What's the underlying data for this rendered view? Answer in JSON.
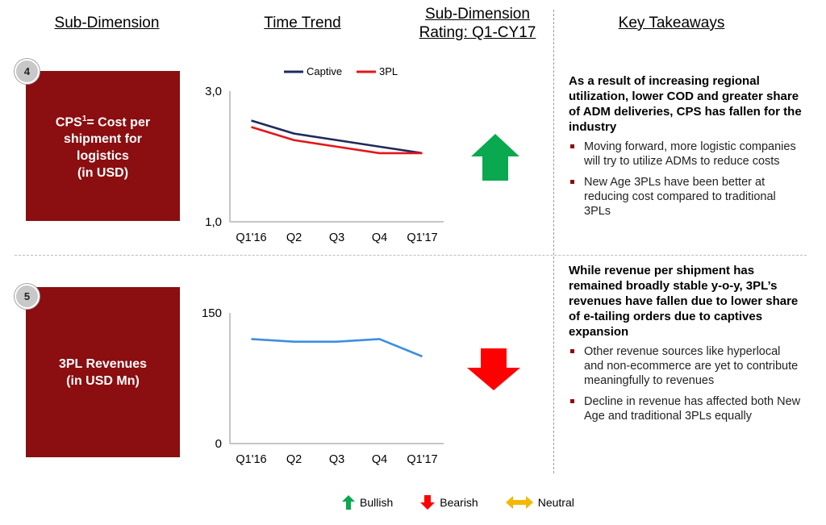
{
  "headers": {
    "sub_dimension": "Sub-Dimension",
    "time_trend": "Time Trend",
    "rating_line1": "Sub-Dimension",
    "rating_line2": "Rating: Q1-CY17",
    "key_takeaways": "Key Takeaways"
  },
  "rows": [
    {
      "number": "4",
      "dimension_main": "CPS",
      "dimension_sup": "1",
      "dimension_rest": "= Cost per\nshipment for\nlogistics\n(in USD)",
      "rating": "bullish",
      "takeaway_lead": "As a result of increasing regional utilization, lower COD and greater share of ADM deliveries, CPS has fallen for the industry",
      "bullets": [
        "Moving forward, more logistic companies will try to utilize ADMs to reduce costs",
        "New Age 3PLs have been better at reducing cost compared to traditional 3PLs"
      ]
    },
    {
      "number": "5",
      "dimension_text": "3PL Revenues\n(in USD Mn)",
      "rating": "bearish",
      "takeaway_lead": "While revenue per shipment has remained broadly stable y-o-y, 3PL’s revenues have fallen due to lower share of e-tailing orders due to captives expansion",
      "bullets": [
        "Other revenue sources like hyperlocal and non-ecommerce are yet to contribute meaningfully to revenues",
        "Decline in revenue has affected both New Age and traditional 3PLs equally"
      ]
    }
  ],
  "chart_data": [
    {
      "type": "line",
      "categories": [
        "Q1'16",
        "Q2",
        "Q3",
        "Q4",
        "Q1'17"
      ],
      "ylim": [
        1.0,
        3.0
      ],
      "yticks": [
        "1,0",
        "3,0"
      ],
      "legend_position": "top",
      "series": [
        {
          "name": "Captive",
          "color": "#1f2a5a",
          "values": [
            2.55,
            2.35,
            2.25,
            2.15,
            2.05
          ]
        },
        {
          "name": "3PL",
          "color": "#e3161b",
          "values": [
            2.45,
            2.25,
            2.15,
            2.05,
            2.05
          ]
        }
      ]
    },
    {
      "type": "line",
      "categories": [
        "Q1'16",
        "Q2",
        "Q3",
        "Q4",
        "Q1'17"
      ],
      "ylim": [
        0,
        150
      ],
      "yticks": [
        "0",
        "150"
      ],
      "series": [
        {
          "color": "#3d8fe0",
          "values": [
            120,
            117,
            117,
            120,
            100
          ]
        }
      ]
    }
  ],
  "legend": {
    "bullish": "Bullish",
    "bearish": "Bearish",
    "neutral": "Neutral"
  },
  "colors": {
    "box": "#8b0e10",
    "bullish": "#0aa84f",
    "bearish": "#ff0000",
    "neutral": "#f5b800"
  }
}
